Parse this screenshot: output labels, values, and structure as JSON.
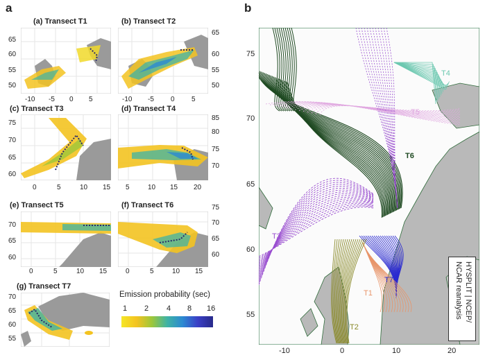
{
  "panel_a": {
    "letter": "a",
    "subpanels": [
      {
        "id": "T1",
        "title": "(a)  Transect  T1",
        "y_ticks": [
          "65",
          "60",
          "55",
          "50"
        ],
        "y_side": "left",
        "x_ticks": [
          "-10",
          "-5",
          "0",
          "5"
        ]
      },
      {
        "id": "T2",
        "title": "(b)  Transect  T2",
        "y_ticks": [
          "65",
          "60",
          "55",
          "50"
        ],
        "y_side": "right",
        "x_ticks": [
          "-10",
          "-5",
          "0",
          "5"
        ]
      },
      {
        "id": "T3",
        "title": "(c)  Transect  T3",
        "y_ticks": [
          "75",
          "70",
          "65",
          "60"
        ],
        "y_side": "left",
        "x_ticks": [
          "0",
          "5",
          "10",
          "15"
        ]
      },
      {
        "id": "T4",
        "title": "(d)  Transect  T4",
        "y_ticks": [
          "85",
          "80",
          "75",
          "70"
        ],
        "y_side": "right",
        "x_ticks": [
          "5",
          "10",
          "15",
          "20"
        ]
      },
      {
        "id": "T5",
        "title": "(e)  Transect  T5",
        "y_ticks": [
          "70",
          "65",
          "60"
        ],
        "y_side": "left",
        "x_ticks": [
          "0",
          "5",
          "10",
          "15"
        ]
      },
      {
        "id": "T6",
        "title": "(f)  Transect  T6",
        "y_ticks": [
          "75",
          "70",
          "65",
          "60"
        ],
        "y_side": "right",
        "x_ticks": [
          "0",
          "5",
          "10",
          "15"
        ]
      },
      {
        "id": "T7",
        "title": "(g)  Transect  T7",
        "y_ticks": [
          "70",
          "65",
          "60",
          "55"
        ],
        "y_side": "left",
        "x_ticks": []
      }
    ],
    "colorbar": {
      "label": "Emission probability (sec)",
      "ticks": [
        "1",
        "2",
        "4",
        "8",
        "16"
      ],
      "colors": [
        "#f5e626",
        "#f3c321",
        "#9cc73a",
        "#3fb3a5",
        "#2c8ad2",
        "#3a3fc6",
        "#282a8a"
      ]
    }
  },
  "panel_b": {
    "letter": "b",
    "y_ticks": [
      "75",
      "70",
      "65",
      "60",
      "55"
    ],
    "x_ticks": [
      "-10",
      "0",
      "10",
      "20"
    ],
    "labels": {
      "T1": "T1",
      "T2": "T2",
      "T3": "T3",
      "T4": "T4",
      "T5": "T5",
      "T6": "T6",
      "T7": "T7"
    },
    "credit_line1": "HYSPLIT | NCEP/",
    "credit_line2": "NCAR reanalysis",
    "colors": {
      "T1": "#e8956a",
      "T2": "#8a8a2a",
      "T3": "#9a4fd0",
      "T4": "#6cc8b0",
      "T5": "#e0a8e0",
      "T6": "#1f4a22",
      "T7": "#2a2ad0",
      "land": "#b8b8b8"
    }
  }
}
